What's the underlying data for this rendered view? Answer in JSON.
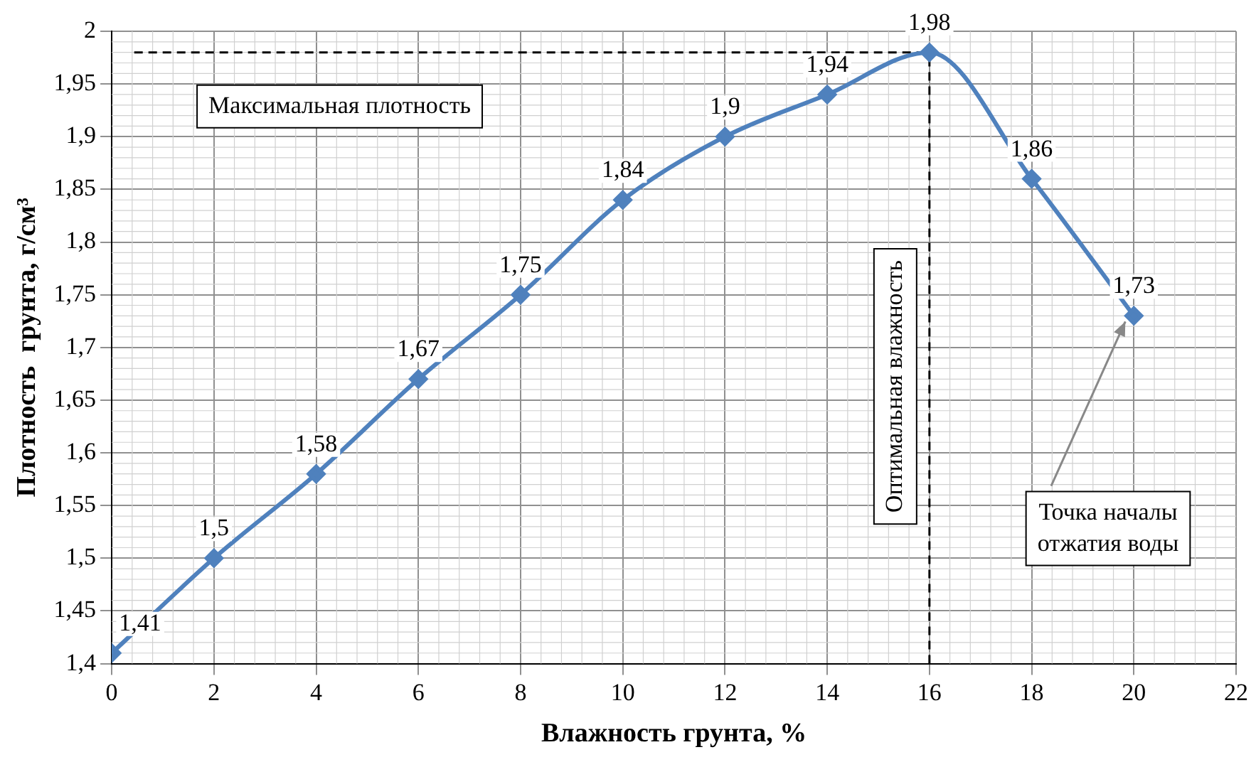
{
  "chart_data": {
    "type": "line",
    "xlabel": "Влажность грунта, %",
    "ylabel": "Плотность  грунта, г/см³",
    "x": [
      0,
      2,
      4,
      6,
      8,
      10,
      12,
      14,
      16,
      18,
      20
    ],
    "series": [
      {
        "color": "#4f81bd",
        "values": [
          1.41,
          1.5,
          1.58,
          1.67,
          1.75,
          1.84,
          1.9,
          1.94,
          1.98,
          1.86,
          1.73
        ],
        "value_labels": [
          "1,41",
          "1,5",
          "1,58",
          "1,67",
          "1,75",
          "1,84",
          "1,9",
          "1,94",
          "1,98",
          "1,86",
          "1,73"
        ]
      }
    ],
    "xlim": [
      0,
      22
    ],
    "xticks": [
      0,
      2,
      4,
      6,
      8,
      10,
      12,
      14,
      16,
      18,
      20,
      22
    ],
    "ylim": [
      1.4,
      2
    ],
    "yticks": [
      {
        "value": 1.4,
        "label": "1,4"
      },
      {
        "value": 1.45,
        "label": "1,45"
      },
      {
        "value": 1.5,
        "label": "1,5"
      },
      {
        "value": 1.55,
        "label": "1,55"
      },
      {
        "value": 1.6,
        "label": "1,6"
      },
      {
        "value": 1.65,
        "label": "1,65"
      },
      {
        "value": 1.7,
        "label": "1,7"
      },
      {
        "value": 1.75,
        "label": "1,75"
      },
      {
        "value": 1.8,
        "label": "1,8"
      },
      {
        "value": 1.85,
        "label": "1,85"
      },
      {
        "value": 1.9,
        "label": "1,9"
      },
      {
        "value": 1.95,
        "label": "1,95"
      },
      {
        "value": 2,
        "label": "2"
      }
    ],
    "ref_lines": [
      {
        "axis": "y",
        "value": 1.98,
        "label": "Максимальная плотность",
        "color": "#000000",
        "line_style": "dashed"
      },
      {
        "axis": "x",
        "value": 16,
        "label": "Оптимальная влажность",
        "color": "#000000",
        "line_style": "dashed"
      }
    ],
    "annotations": [
      {
        "text": "Точка началы отжатия воды",
        "x": 20,
        "y": 1.73
      }
    ],
    "grid": true,
    "legend": false,
    "marker": "diamond",
    "line_style": "solid"
  }
}
